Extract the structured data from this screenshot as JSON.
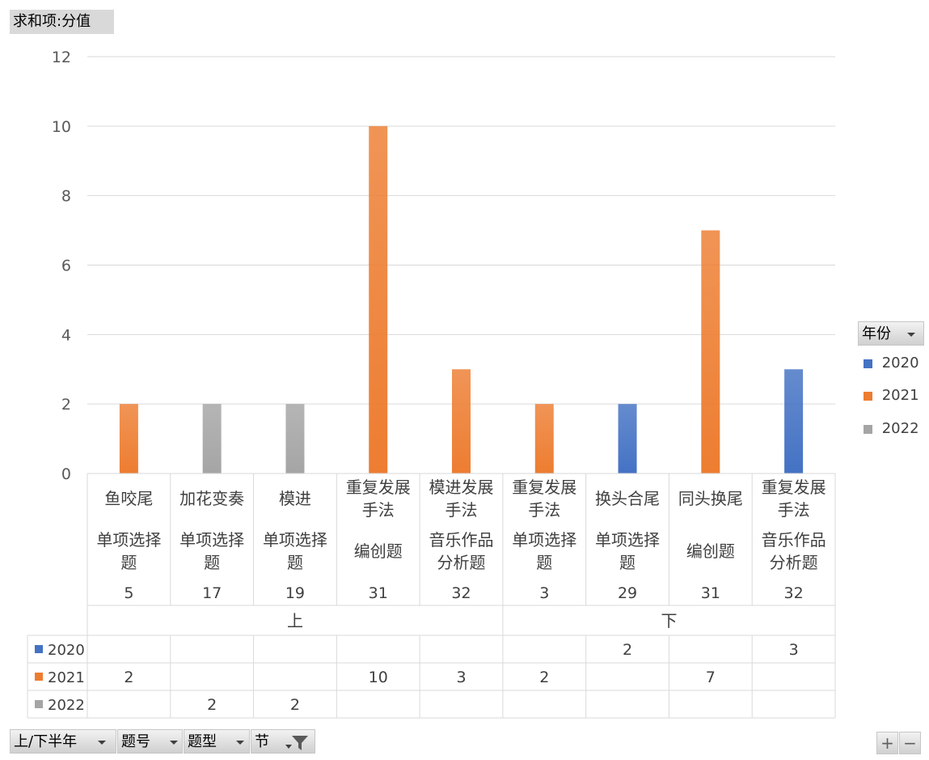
{
  "value_field": "求和项:分值",
  "legend": {
    "title": "年份",
    "items": [
      {
        "label": "2020",
        "color": "#4472c4"
      },
      {
        "label": "2021",
        "color": "#ed7d31"
      },
      {
        "label": "2022",
        "color": "#a5a5a5"
      }
    ]
  },
  "axis_fields": [
    {
      "label": "上/下半年",
      "icon": "dropdown-arrow-icon"
    },
    {
      "label": "题号",
      "icon": "dropdown-arrow-icon"
    },
    {
      "label": "题型",
      "icon": "dropdown-arrow-icon"
    },
    {
      "label": "节",
      "icon": "filter-icon"
    }
  ],
  "zoom": {
    "plus": "+",
    "minus": "−"
  },
  "chart_data": {
    "type": "bar",
    "ylim": [
      0,
      12
    ],
    "yticks": [
      0,
      2,
      4,
      6,
      8,
      10,
      12
    ],
    "grid": true,
    "legend_position": "right",
    "categories": [
      {
        "section": "鱼咬尾",
        "type": "单项选择题",
        "number": "5",
        "half": "上"
      },
      {
        "section": "加花变奏",
        "type": "单项选择题",
        "number": "17",
        "half": "上"
      },
      {
        "section": "模进",
        "type": "单项选择题",
        "number": "19",
        "half": "上"
      },
      {
        "section": "重复发展手法",
        "type": "编创题",
        "number": "31",
        "half": "上"
      },
      {
        "section": "模进发展手法",
        "type": "音乐作品分析题",
        "number": "32",
        "half": "上"
      },
      {
        "section": "重复发展手法",
        "type": "单项选择题",
        "number": "3",
        "half": "下"
      },
      {
        "section": "换头合尾",
        "type": "单项选择题",
        "number": "29",
        "half": "下"
      },
      {
        "section": "同头换尾",
        "type": "编创题",
        "number": "31",
        "half": "下"
      },
      {
        "section": "重复发展手法",
        "type": "音乐作品分析题",
        "number": "32",
        "half": "下"
      }
    ],
    "halves": [
      "上",
      "下"
    ],
    "series": [
      {
        "name": "2020",
        "values": [
          null,
          null,
          null,
          null,
          null,
          null,
          2,
          null,
          3
        ]
      },
      {
        "name": "2021",
        "values": [
          2,
          null,
          null,
          10,
          3,
          2,
          null,
          7,
          null
        ]
      },
      {
        "name": "2022",
        "values": [
          null,
          2,
          2,
          null,
          null,
          null,
          null,
          null,
          null
        ]
      }
    ]
  }
}
